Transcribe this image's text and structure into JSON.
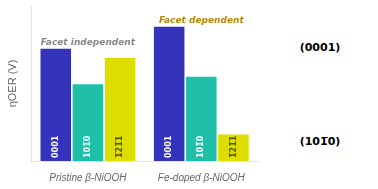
{
  "chart_data": {
    "type": "bar",
    "categories": [
      "Pristine β-NiOOH",
      "Fe-doped β-NiOOH"
    ],
    "series": [
      {
        "name": "0001",
        "color": "#3333bb",
        "values": [
          0.76,
          0.91
        ]
      },
      {
        "name": "101̅0",
        "color": "#1fbfaa",
        "values": [
          0.52,
          0.57
        ]
      },
      {
        "name": "1̅21̅1",
        "color": "#dddd00",
        "values": [
          0.7,
          0.18
        ]
      }
    ],
    "y_label": "ηOER (V)",
    "ylim": [
      0,
      1.05
    ],
    "tick_labels": "x",
    "grid": false,
    "legend": false,
    "annotations": [
      {
        "text": "Facet independent",
        "category": "Pristine β-NiOOH",
        "color": "#888888"
      },
      {
        "text": "Facet dependent",
        "category": "Fe-doped β-NiOOH",
        "color": "#b8860b"
      },
      {
        "text": "(0001)"
      },
      {
        "text": "(101̅0)"
      }
    ]
  }
}
